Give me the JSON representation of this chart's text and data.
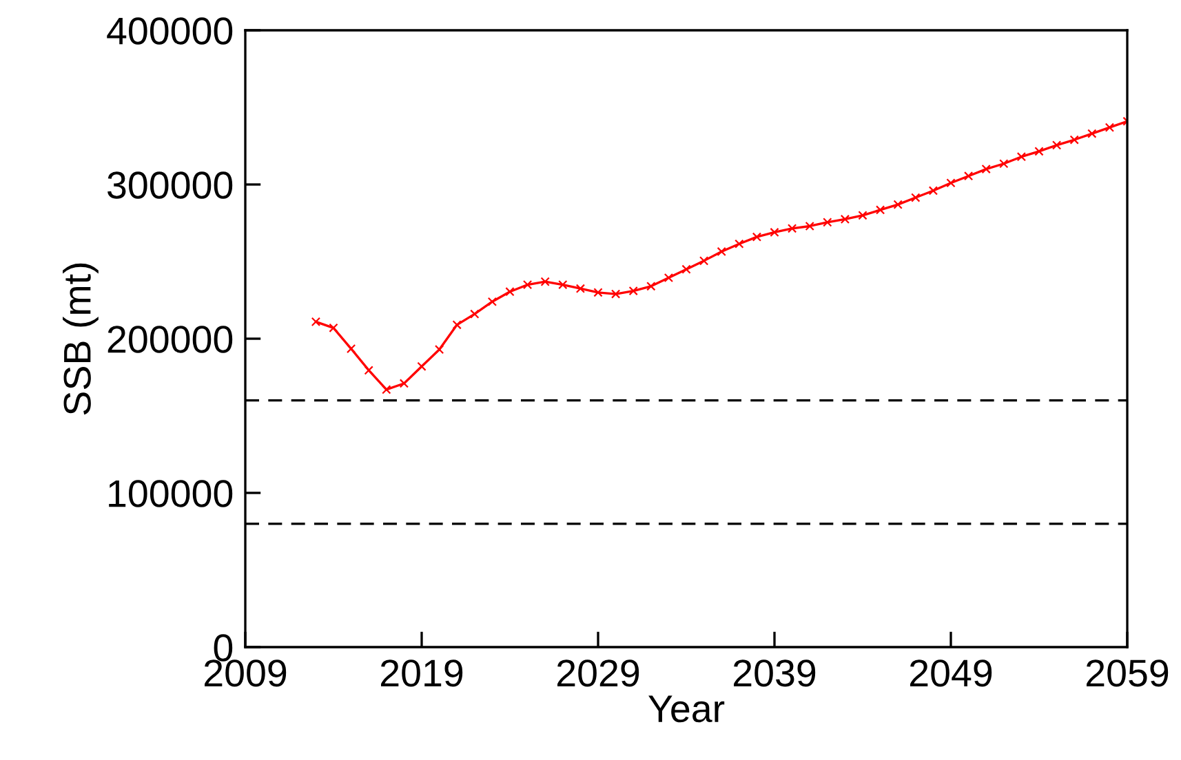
{
  "chart_data": {
    "type": "line",
    "xlabel": "Year",
    "ylabel": "SSB (mt)",
    "x": [
      2013,
      2014,
      2015,
      2016,
      2017,
      2018,
      2019,
      2020,
      2021,
      2022,
      2023,
      2024,
      2025,
      2026,
      2027,
      2028,
      2029,
      2030,
      2031,
      2032,
      2033,
      2034,
      2035,
      2036,
      2037,
      2038,
      2039,
      2040,
      2041,
      2042,
      2043,
      2044,
      2045,
      2046,
      2047,
      2048,
      2049,
      2050,
      2051,
      2052,
      2053,
      2054,
      2055,
      2056,
      2057,
      2058,
      2059
    ],
    "series": [
      {
        "color": "#ff0000",
        "values": [
          211000,
          207000,
          193500,
          179500,
          167000,
          171000,
          182000,
          193000,
          209000,
          216000,
          224000,
          230500,
          235000,
          237000,
          235000,
          232500,
          230000,
          229000,
          231000,
          234000,
          239500,
          245000,
          250500,
          256500,
          261500,
          266000,
          269000,
          271500,
          273000,
          275500,
          277500,
          280000,
          283500,
          287000,
          291500,
          296000,
          301000,
          305500,
          310000,
          313500,
          318000,
          321500,
          325500,
          329000,
          333000,
          337000,
          341000
        ]
      }
    ],
    "xlim": [
      2009,
      2059
    ],
    "xticks": [
      2009,
      2019,
      2029,
      2039,
      2049,
      2059
    ],
    "ylim": [
      0,
      400000
    ],
    "yticks": [
      0,
      100000,
      200000,
      300000,
      400000
    ],
    "ref_lines": [
      {
        "axis": "y",
        "value": 160000,
        "color": "#000000",
        "line_style": "dashed"
      },
      {
        "axis": "y",
        "value": 80000,
        "color": "#000000",
        "line_style": "dashed"
      }
    ],
    "marker": "cross",
    "line_style": "solid",
    "grid": false,
    "legend": false
  }
}
